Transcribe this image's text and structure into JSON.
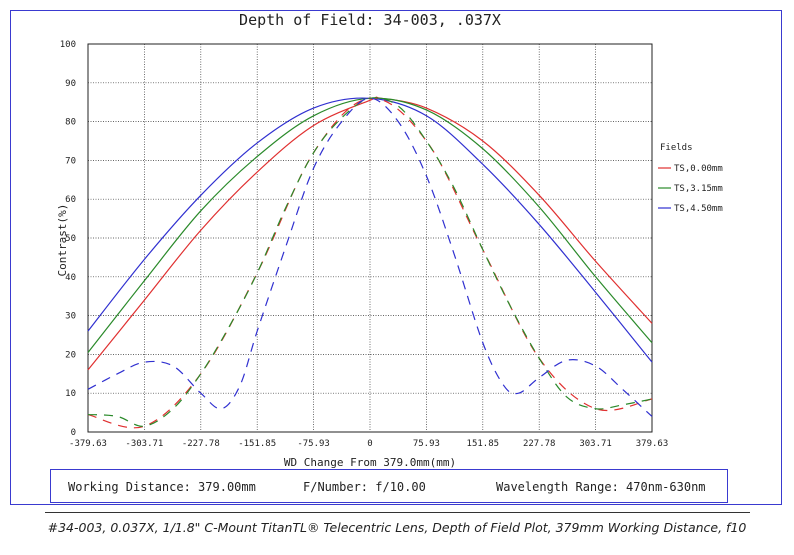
{
  "chart_data": {
    "type": "line",
    "title": "Depth of Field: 34-003, .037X",
    "xlabel": "WD Change From 379.0mm(mm)",
    "ylabel": "Contrast(%)",
    "xlim": [
      -379.63,
      379.63
    ],
    "ylim": [
      0,
      100
    ],
    "x_ticks": [
      "-379.63",
      "-303.71",
      "-227.78",
      "-151.85",
      "-75.93",
      "0",
      "75.93",
      "151.85",
      "227.78",
      "303.71",
      "379.63"
    ],
    "y_ticks": [
      "0",
      "10",
      "20",
      "30",
      "40",
      "50",
      "60",
      "70",
      "80",
      "90",
      "100"
    ],
    "grid": true,
    "legend_title": "Fields",
    "legend_position": "right",
    "series": [
      {
        "name": "TS,0.00mm",
        "color": "#e03030",
        "style": "solid",
        "x": [
          -379.63,
          -303.71,
          -227.78,
          -151.85,
          -75.93,
          0,
          15,
          75.93,
          151.85,
          227.78,
          303.71,
          379.63
        ],
        "y": [
          16,
          34,
          52,
          67,
          79,
          85.5,
          86,
          83.5,
          75,
          61,
          44,
          28
        ]
      },
      {
        "name": "TS,3.15mm",
        "color": "#2a8a2a",
        "style": "solid",
        "x": [
          -379.63,
          -303.71,
          -227.78,
          -151.85,
          -75.93,
          0,
          75.93,
          151.85,
          227.78,
          303.71,
          379.63
        ],
        "y": [
          20.5,
          39,
          57,
          71,
          81.5,
          86,
          83,
          73,
          58,
          40,
          23
        ]
      },
      {
        "name": "TS,4.50mm",
        "color": "#3030d0",
        "style": "solid",
        "x": [
          -379.63,
          -303.71,
          -227.78,
          -151.85,
          -75.93,
          0,
          75.93,
          151.85,
          227.78,
          303.71,
          379.63
        ],
        "y": [
          26,
          44.5,
          61,
          74.5,
          83.5,
          86,
          81.5,
          69,
          53.5,
          36,
          18
        ]
      },
      {
        "name": "TS,0.00mm",
        "color": "#e03030",
        "style": "dashed",
        "hidden_under": "TS,3.15mm",
        "x": [
          -379.63,
          -303.71,
          -227.78,
          -151.85,
          -75.93,
          0,
          75.93,
          151.85,
          227.78,
          303.71,
          379.63
        ],
        "y": [
          4.5,
          1.5,
          15,
          41,
          72,
          86,
          75,
          47,
          19,
          6,
          8.5
        ]
      },
      {
        "name": "TS,3.15mm",
        "color": "#2a8a2a",
        "style": "dashed",
        "x": [
          -379.63,
          -340,
          -303.71,
          -265,
          -227.78,
          -190,
          -151.85,
          -113,
          -75.93,
          -38,
          0,
          38,
          75.93,
          113,
          151.85,
          190,
          227.78,
          265,
          303.71,
          340,
          379.63
        ],
        "y": [
          4.5,
          4,
          1.5,
          6,
          15,
          27,
          41,
          58,
          72,
          81,
          86,
          84,
          75,
          63,
          47,
          32,
          19,
          9,
          6,
          7,
          8.5
        ]
      },
      {
        "name": "TS,4.50mm",
        "color": "#3030d0",
        "style": "dashed",
        "x": [
          -379.63,
          -340,
          -303.71,
          -265,
          -227.78,
          -200,
          -175,
          -151.85,
          -113,
          -75.93,
          -38,
          0,
          38,
          75.93,
          113,
          151.85,
          180,
          200,
          227.78,
          265,
          303.71,
          340,
          379.63
        ],
        "y": [
          11,
          15,
          18,
          17,
          10,
          6,
          12,
          26,
          48,
          68,
          80,
          86,
          80,
          66,
          46,
          23,
          12,
          10,
          14,
          18.5,
          17,
          11,
          4
        ]
      }
    ],
    "legend": [
      {
        "label": "TS,0.00mm",
        "color": "#e03030"
      },
      {
        "label": "TS,3.15mm",
        "color": "#2a8a2a"
      },
      {
        "label": "TS,4.50mm",
        "color": "#3030d0"
      }
    ]
  },
  "info": {
    "working_distance": "Working Distance: 379.00mm",
    "f_number": "F/Number: f/10.00",
    "wavelength": "Wavelength Range: 470nm-630nm"
  },
  "caption": "#34-003, 0.037X, 1/1.8\" C-Mount TitanTL® Telecentric Lens, Depth of Field Plot, 379mm Working Distance, f10"
}
